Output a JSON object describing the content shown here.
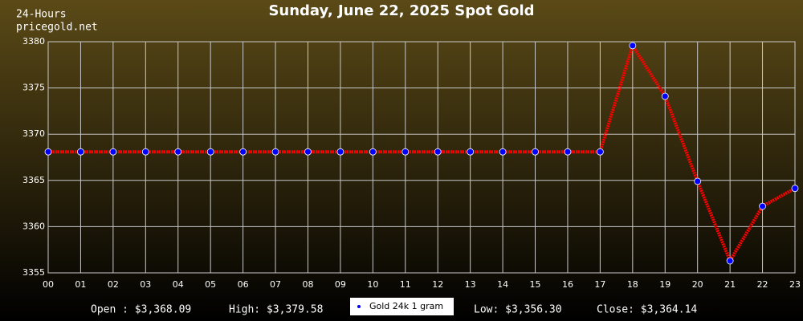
{
  "chart_data": {
    "type": "line",
    "title": "Sunday, June 22, 2025 Spot Gold",
    "subtitle": [
      "24-Hours",
      "pricegold.net"
    ],
    "categories": [
      "00",
      "01",
      "02",
      "03",
      "04",
      "05",
      "06",
      "07",
      "08",
      "09",
      "10",
      "11",
      "12",
      "13",
      "14",
      "15",
      "16",
      "17",
      "18",
      "19",
      "20",
      "21",
      "22",
      "23"
    ],
    "series": [
      {
        "name": "Gold 24k 1 gram",
        "color": "#ff0000",
        "marker_color": "#0000ff",
        "values": [
          3368.09,
          3368.09,
          3368.09,
          3368.09,
          3368.09,
          3368.09,
          3368.09,
          3368.09,
          3368.09,
          3368.09,
          3368.09,
          3368.09,
          3368.09,
          3368.09,
          3368.09,
          3368.09,
          3368.09,
          3368.09,
          3379.58,
          3374.1,
          3364.9,
          3356.3,
          3362.2,
          3364.14
        ]
      }
    ],
    "ylim": [
      3355,
      3380
    ],
    "yticks": [
      3355,
      3360,
      3365,
      3370,
      3375,
      3380
    ],
    "grid": true,
    "stats": [
      "Open : $3,368.09",
      "High: $3,379.58",
      "Low: $3,356.30",
      "Close: $3,364.14"
    ]
  }
}
